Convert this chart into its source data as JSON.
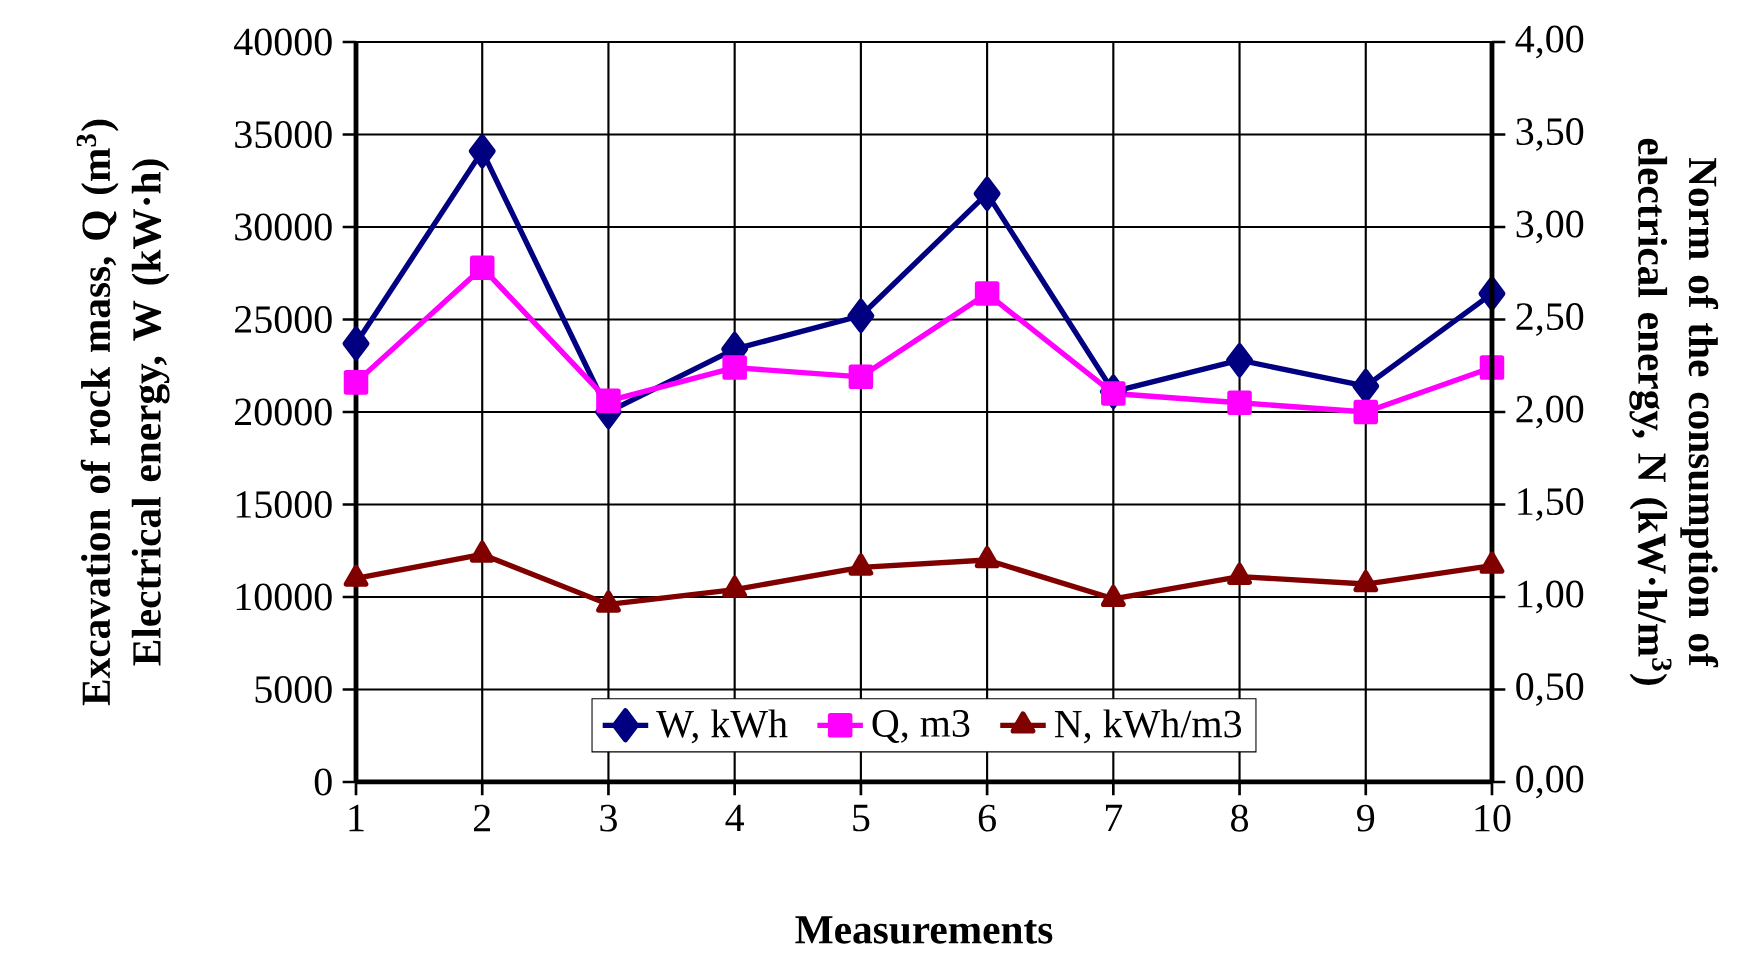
{
  "chart_data": {
    "type": "line",
    "xlabel": "Measurements",
    "ylabel": "Excavation of rock mass, Q (m$^{3}$) Electrical energy, W (kW·h)",
    "y2label": "Norm of the consumption of electrical energy, N (kW·h/m$^{3}$)",
    "x": [
      1,
      2,
      3,
      4,
      5,
      6,
      7,
      8,
      9,
      10
    ],
    "xlim": [
      1,
      10
    ],
    "xticks": [
      1,
      2,
      3,
      4,
      5,
      6,
      7,
      8,
      9,
      10
    ],
    "ylim": [
      0,
      40000
    ],
    "yticks": [
      0,
      5000,
      10000,
      15000,
      20000,
      25000,
      30000,
      35000,
      40000
    ],
    "y2lim": [
      0,
      4
    ],
    "y2ticks": [
      {
        "value": 0,
        "label": "0,00"
      },
      {
        "value": 0.5,
        "label": "0,50"
      },
      {
        "value": 1,
        "label": "1,00"
      },
      {
        "value": 1.5,
        "label": "1,50"
      },
      {
        "value": 2,
        "label": "2,00"
      },
      {
        "value": 2.5,
        "label": "2,50"
      },
      {
        "value": 3,
        "label": "3,00"
      },
      {
        "value": 3.5,
        "label": "3,50"
      },
      {
        "value": 4,
        "label": "4,00"
      }
    ],
    "grid": true,
    "legend": "bottom",
    "line_style": "solid",
    "series": [
      {
        "name": "W, kWh",
        "color": "#000080",
        "marker": "diamond",
        "values": [
          23700,
          34100,
          20000,
          23400,
          25200,
          31800,
          21100,
          22800,
          21400,
          26400
        ]
      },
      {
        "name": "Q, m3",
        "color": "#ff00ff",
        "marker": "square",
        "values": [
          21600,
          27800,
          20600,
          22400,
          21900,
          26400,
          21000,
          20500,
          20000,
          22400
        ]
      },
      {
        "name": "N, kWh/m3",
        "color": "#800000",
        "marker": "triangle",
        "axis": "y2",
        "values": [
          1.1,
          1.23,
          0.96,
          1.04,
          1.16,
          1.2,
          0.99,
          1.11,
          1.07,
          1.17
        ]
      }
    ]
  }
}
